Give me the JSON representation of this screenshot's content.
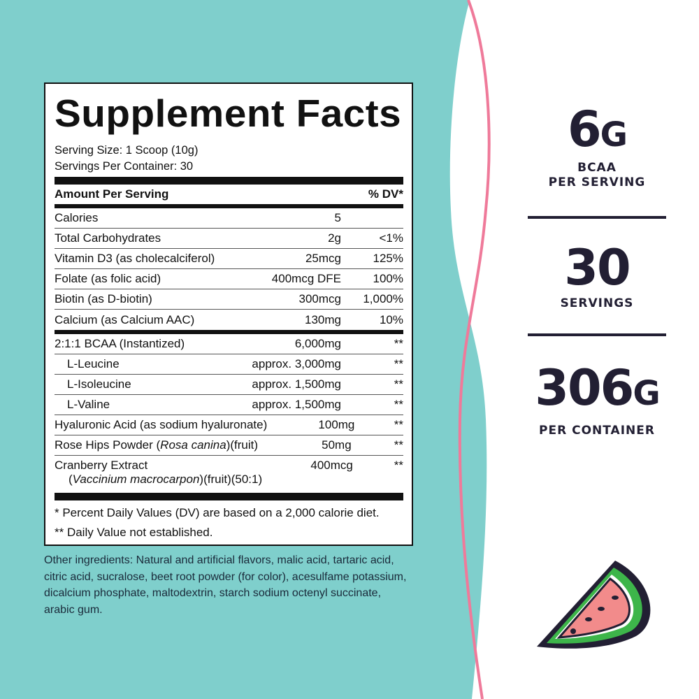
{
  "colors": {
    "teal": "#7fcfcc",
    "pink": "#ef7a9a",
    "navy": "#221f33"
  },
  "label": {
    "title": "Supplement Facts",
    "serving_size": "Serving Size: 1 Scoop (10g)",
    "servings_per_container": "Servings Per Container: 30",
    "header": {
      "name": "Amount Per Serving",
      "dv": "% DV*"
    },
    "rows": [
      {
        "name": "Calories",
        "amount": "5",
        "dv": ""
      },
      {
        "name": "Total Carbohydrates",
        "amount": "2g",
        "dv": "<1%"
      },
      {
        "name": "Vitamin D3 (as cholecalciferol)",
        "amount": "25mcg",
        "dv": "125%"
      },
      {
        "name": "Folate (as folic acid)",
        "amount": "400mcg DFE",
        "dv": "100%"
      },
      {
        "name": "Biotin (as D-biotin)",
        "amount": "300mcg",
        "dv": "1,000%"
      },
      {
        "name": "Calcium (as Calcium AAC)",
        "amount": "130mg",
        "dv": "10%"
      }
    ],
    "rows2": [
      {
        "name": "2:1:1 BCAA (Instantized)",
        "amount": "6,000mg",
        "dv": "**"
      },
      {
        "name": "L-Leucine",
        "amount": "approx. 3,000mg",
        "dv": "**"
      },
      {
        "name": "L-Isoleucine",
        "amount": "approx. 1,500mg",
        "dv": "**"
      },
      {
        "name": "L-Valine",
        "amount": "approx. 1,500mg",
        "dv": "**"
      },
      {
        "name": "Hyaluronic Acid (as sodium hyaluronate)",
        "amount": "100mg",
        "dv": "**"
      },
      {
        "name_pre": "Rose Hips Powder (",
        "name_italic": "Rosa canina",
        "name_post": ")(fruit)",
        "amount": "50mg",
        "dv": "**"
      },
      {
        "name": "Cranberry Extract",
        "name2_pre": "(",
        "name2_italic": "Vaccinium macrocarpon",
        "name2_post": ")(fruit)(50:1)",
        "amount": "400mcg",
        "dv": "**"
      }
    ],
    "footnote1": "* Percent Daily Values (DV) are based on a 2,000 calorie diet.",
    "footnote2": "** Daily Value not established."
  },
  "other_ingredients": "Other ingredients: Natural and artificial flavors, malic acid, tartaric acid, citric acid, sucralose, beet root powder (for color), acesulfame potassium, dicalcium phosphate, maltodextrin, starch sodium octenyl succinate, arabic gum.",
  "stats": [
    {
      "num": "6",
      "unit": "G",
      "cap1": "BCAA",
      "cap2": "PER SERVING"
    },
    {
      "num": "30",
      "unit": "",
      "cap1": "SERVINGS",
      "cap2": ""
    },
    {
      "num": "306",
      "unit": "G",
      "cap1": "PER CONTAINER",
      "cap2": ""
    }
  ],
  "icon": "watermelon-slice-icon"
}
